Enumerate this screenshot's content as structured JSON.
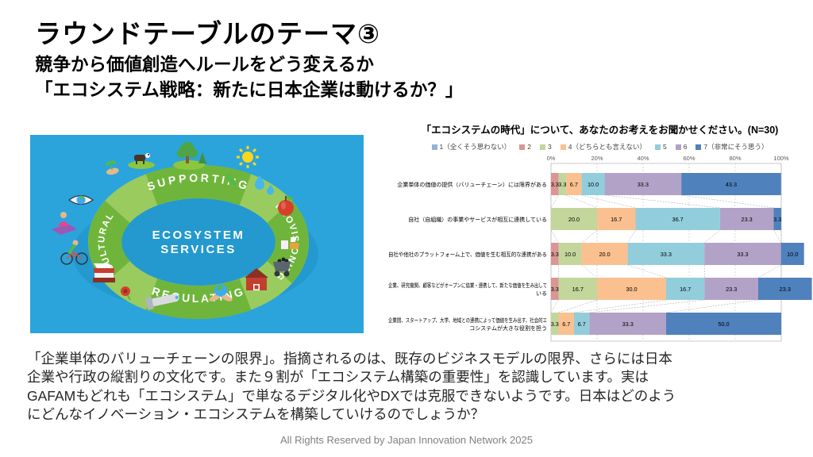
{
  "slide": {
    "title": "ラウンドテーブルのテーマ③",
    "subtitle_line1": "競争から価値創造へルールをどう変えるか",
    "subtitle_line2": "「エコシステム戦略：新たに日本企業は動けるか？」",
    "body_lines": [
      "「企業単体のバリューチェーンの限界」。指摘されるのは、既存のビジネスモデルの限界、さらには日本",
      "企業や行政の縦割りの文化です。また９割が「エコシステム構築の重要性」を認識しています。実は",
      "GAFAMもどれも「エコシステム」で単なるデジタル化やDXでは克服できないようです。日本はどのよう",
      "にどんなイノベーション・エコシステムを構築していけるのでしょうか？"
    ],
    "footer": "All Rights Reserved by Japan Innovation Network 2025"
  },
  "illustration": {
    "background_color": "#2BA4DC",
    "ring_color": "#8CC63E",
    "ring_band_color": "#6FB53B",
    "center_line1": "ECOSYSTEM",
    "center_line2": "SERVICES",
    "ring_labels": [
      "SUPPORTING",
      "PROVISIONING",
      "REGULATING",
      "CULTURAL"
    ],
    "icon_names": [
      "tree-icon",
      "cow-icon",
      "sun-icon",
      "leaf-icon",
      "water-drops-icon",
      "apple-icon",
      "goods-icon",
      "coal-cart-icon",
      "barn-icon",
      "hands-globe-icon",
      "water-pump-icon",
      "flower-icon",
      "books-icon",
      "cyclist-icon",
      "yoga-icon",
      "eye-icon",
      "sprout-hand-icon"
    ]
  },
  "chart_data": {
    "type": "bar",
    "orientation": "horizontal-stacked",
    "title": "「エコシステムの時代」について、あなたのお考えをお聞かせください。(N=30)",
    "x_ticks": [
      "0%",
      "20%",
      "40%",
      "60%",
      "80%",
      "100%"
    ],
    "xlim": [
      0,
      100
    ],
    "grid": true,
    "legend_position": "top",
    "categories": [
      "企業単体の価値の提供（バリューチェーン）には限界がある",
      "自社（自組織）の事業やサービスが相互に連携している",
      "自社や他社のプラットフォーム上で、価値を生む相互的な連携がある",
      "企業、研究機関、顧客などがオープンに協業・連携して、新たな価値を生み出している",
      "企業間、スタートアップ、大学、地域との連携によって価値を生み出す、社会的エコシステムが大きな役割を担う"
    ],
    "categories_lines": [
      [
        "企業単体の価値の提供（バリューチェーン）には限界がある"
      ],
      [
        "自社（自組織）の事業やサービスが相互に連携している"
      ],
      [
        "自社や他社のプラットフォーム上で、価値を生む相互的な連携がある"
      ],
      [
        "企業、研究機関、顧客などがオープンに協業・連携して、新たな価値を生み出して",
        "いる"
      ],
      [
        "企業間、スタートアップ、大学、地域との連携によって価値を生み出す、社会的エ",
        "コシステムが大きな役割を担う"
      ]
    ],
    "series": [
      {
        "name": "1（全くそう思わない）",
        "color": "#95B3D7",
        "values": [
          0,
          0,
          0,
          0,
          0
        ]
      },
      {
        "name": "2",
        "color": "#D99694",
        "values": [
          3.3,
          0,
          3.3,
          3.3,
          0
        ]
      },
      {
        "name": "3",
        "color": "#C3D69B",
        "values": [
          3.3,
          20.0,
          10.0,
          16.7,
          3.3
        ]
      },
      {
        "name": "4（どちらとも言えない）",
        "color": "#FAC090",
        "values": [
          6.7,
          16.7,
          20.0,
          30.0,
          6.7
        ]
      },
      {
        "name": "5",
        "color": "#92CDDC",
        "values": [
          10.0,
          36.7,
          33.3,
          16.7,
          6.7
        ]
      },
      {
        "name": "6",
        "color": "#B3A2C7",
        "values": [
          33.3,
          23.3,
          33.3,
          23.3,
          33.3
        ]
      },
      {
        "name": "7（非常にそう思う）",
        "color": "#4F81BD",
        "values": [
          43.3,
          3.3,
          10.0,
          23.3,
          50.0
        ]
      }
    ]
  }
}
